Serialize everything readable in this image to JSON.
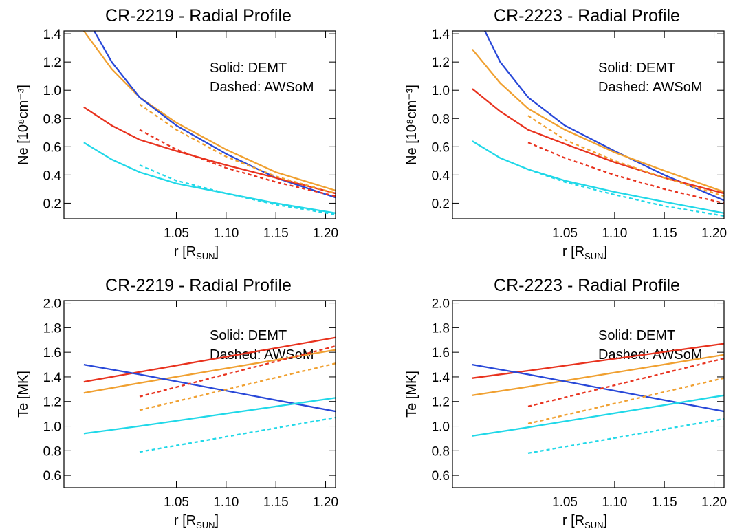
{
  "chart_data": [
    {
      "type": "line",
      "title": "CR-2219 - Radial Profile",
      "xlabel": [
        "r [R",
        "SUN",
        "]"
      ],
      "ylabel": "Ne [10⁸cm⁻³]",
      "annotations": [
        "Solid: DEMT",
        "Dashed: AWSoM"
      ],
      "x": [
        0.957,
        0.985,
        1.013,
        1.05,
        1.1,
        1.15,
        1.21
      ],
      "xlim": [
        0.937,
        1.21
      ],
      "xticks": [
        1.05,
        {
          "value": 1.1,
          "label": "1.10"
        },
        1.15,
        {
          "value": 1.2,
          "label": "1.20"
        }
      ],
      "ylim": [
        0.09,
        1.42
      ],
      "yticks": [
        0.2,
        0.4,
        0.6,
        0.8,
        {
          "value": 1,
          "label": "1.0"
        },
        1.2,
        1.4
      ],
      "series": [
        {
          "color": "#f0a030",
          "dashed": false,
          "values": [
            1.42,
            1.15,
            0.95,
            0.77,
            0.58,
            0.42,
            0.29
          ]
        },
        {
          "color": "#2848d8",
          "dashed": false,
          "values": [
            1.55,
            1.2,
            0.95,
            0.75,
            0.55,
            0.38,
            0.24
          ]
        },
        {
          "color": "#e8321e",
          "dashed": false,
          "values": [
            0.88,
            0.75,
            0.65,
            0.57,
            0.47,
            0.38,
            0.27
          ]
        },
        {
          "color": "#20d8e8",
          "dashed": false,
          "values": [
            0.63,
            0.51,
            0.42,
            0.34,
            0.27,
            0.2,
            0.13
          ]
        },
        {
          "color": "#f0a030",
          "dashed": true,
          "values": [
            null,
            null,
            0.9,
            0.72,
            0.53,
            0.39,
            0.27
          ]
        },
        {
          "color": "#e8321e",
          "dashed": true,
          "values": [
            null,
            null,
            0.72,
            0.58,
            0.45,
            0.35,
            0.25
          ]
        },
        {
          "color": "#20d8e8",
          "dashed": true,
          "values": [
            null,
            null,
            0.47,
            0.36,
            0.27,
            0.19,
            0.12
          ]
        }
      ]
    },
    {
      "type": "line",
      "title": "CR-2223 - Radial Profile",
      "xlabel": [
        "r [R",
        "SUN",
        "]"
      ],
      "ylabel": "Ne [10⁸cm⁻³]",
      "annotations": [
        "Solid: DEMT",
        "Dashed: AWSoM"
      ],
      "x": [
        0.957,
        0.985,
        1.013,
        1.05,
        1.1,
        1.15,
        1.21
      ],
      "xlim": [
        0.937,
        1.21
      ],
      "xticks": [
        1.05,
        {
          "value": 1.1,
          "label": "1.10"
        },
        1.15,
        {
          "value": 1.2,
          "label": "1.20"
        }
      ],
      "ylim": [
        0.09,
        1.42
      ],
      "yticks": [
        0.2,
        0.4,
        0.6,
        0.8,
        {
          "value": 1,
          "label": "1.0"
        },
        1.2,
        1.4
      ],
      "series": [
        {
          "color": "#2848d8",
          "dashed": false,
          "values": [
            1.6,
            1.2,
            0.95,
            0.75,
            0.57,
            0.4,
            0.22
          ]
        },
        {
          "color": "#f0a030",
          "dashed": false,
          "values": [
            1.29,
            1.05,
            0.87,
            0.72,
            0.56,
            0.43,
            0.28
          ]
        },
        {
          "color": "#e8321e",
          "dashed": false,
          "values": [
            1.01,
            0.85,
            0.72,
            0.62,
            0.49,
            0.38,
            0.27
          ]
        },
        {
          "color": "#20d8e8",
          "dashed": false,
          "values": [
            0.64,
            0.52,
            0.44,
            0.36,
            0.28,
            0.21,
            0.13
          ]
        },
        {
          "color": "#f0a030",
          "dashed": true,
          "values": [
            null,
            null,
            0.82,
            0.65,
            0.5,
            0.38,
            0.25
          ]
        },
        {
          "color": "#e8321e",
          "dashed": true,
          "values": [
            null,
            null,
            0.63,
            0.52,
            0.4,
            0.3,
            0.2
          ]
        },
        {
          "color": "#20d8e8",
          "dashed": true,
          "values": [
            null,
            null,
            0.44,
            0.35,
            0.26,
            0.18,
            0.11
          ]
        }
      ]
    },
    {
      "type": "line",
      "title": "CR-2219 - Radial Profile",
      "xlabel": [
        "r [R",
        "SUN",
        "]"
      ],
      "ylabel": "Te [MK]",
      "annotations": [
        "Solid: DEMT",
        "Dashed: AWSoM"
      ],
      "x": [
        0.957,
        1.013,
        1.21
      ],
      "xlim": [
        0.937,
        1.21
      ],
      "xticks": [
        1.05,
        {
          "value": 1.1,
          "label": "1.10"
        },
        1.15,
        {
          "value": 1.2,
          "label": "1.20"
        }
      ],
      "ylim": [
        0.5,
        2.02
      ],
      "yticks": [
        0.6,
        0.8,
        {
          "value": 1,
          "label": "1.0"
        },
        1.2,
        1.4,
        1.6,
        1.8,
        {
          "value": 2,
          "label": "2.0"
        }
      ],
      "series": [
        {
          "color": "#e8321e",
          "dashed": false,
          "values": [
            1.36,
            1.44,
            1.72
          ]
        },
        {
          "color": "#f0a030",
          "dashed": false,
          "values": [
            1.27,
            1.35,
            1.62
          ]
        },
        {
          "color": "#2848d8",
          "dashed": false,
          "values": [
            1.5,
            1.42,
            1.12
          ]
        },
        {
          "color": "#20d8e8",
          "dashed": false,
          "values": [
            0.94,
            1.0,
            1.23
          ]
        },
        {
          "color": "#e8321e",
          "dashed": true,
          "values": [
            null,
            1.24,
            1.65
          ]
        },
        {
          "color": "#f0a030",
          "dashed": true,
          "values": [
            null,
            1.13,
            1.51
          ]
        },
        {
          "color": "#20d8e8",
          "dashed": true,
          "values": [
            null,
            0.79,
            1.07
          ]
        }
      ]
    },
    {
      "type": "line",
      "title": "CR-2223 - Radial Profile",
      "xlabel": [
        "r [R",
        "SUN",
        "]"
      ],
      "ylabel": "Te [MK]",
      "annotations": [
        "Solid: DEMT",
        "Dashed: AWSoM"
      ],
      "x": [
        0.957,
        1.013,
        1.21
      ],
      "xlim": [
        0.937,
        1.21
      ],
      "xticks": [
        1.05,
        {
          "value": 1.1,
          "label": "1.10"
        },
        1.15,
        {
          "value": 1.2,
          "label": "1.20"
        }
      ],
      "ylim": [
        0.5,
        2.02
      ],
      "yticks": [
        0.6,
        0.8,
        {
          "value": 1,
          "label": "1.0"
        },
        1.2,
        1.4,
        1.6,
        1.8,
        {
          "value": 2,
          "label": "2.0"
        }
      ],
      "series": [
        {
          "color": "#e8321e",
          "dashed": false,
          "values": [
            1.39,
            1.45,
            1.67
          ]
        },
        {
          "color": "#f0a030",
          "dashed": false,
          "values": [
            1.25,
            1.32,
            1.58
          ]
        },
        {
          "color": "#2848d8",
          "dashed": false,
          "values": [
            1.5,
            1.42,
            1.12
          ]
        },
        {
          "color": "#20d8e8",
          "dashed": false,
          "values": [
            0.92,
            0.99,
            1.25
          ]
        },
        {
          "color": "#e8321e",
          "dashed": true,
          "values": [
            null,
            1.16,
            1.55
          ]
        },
        {
          "color": "#f0a030",
          "dashed": true,
          "values": [
            null,
            1.02,
            1.39
          ]
        },
        {
          "color": "#20d8e8",
          "dashed": true,
          "values": [
            null,
            0.78,
            1.06
          ]
        }
      ]
    }
  ]
}
